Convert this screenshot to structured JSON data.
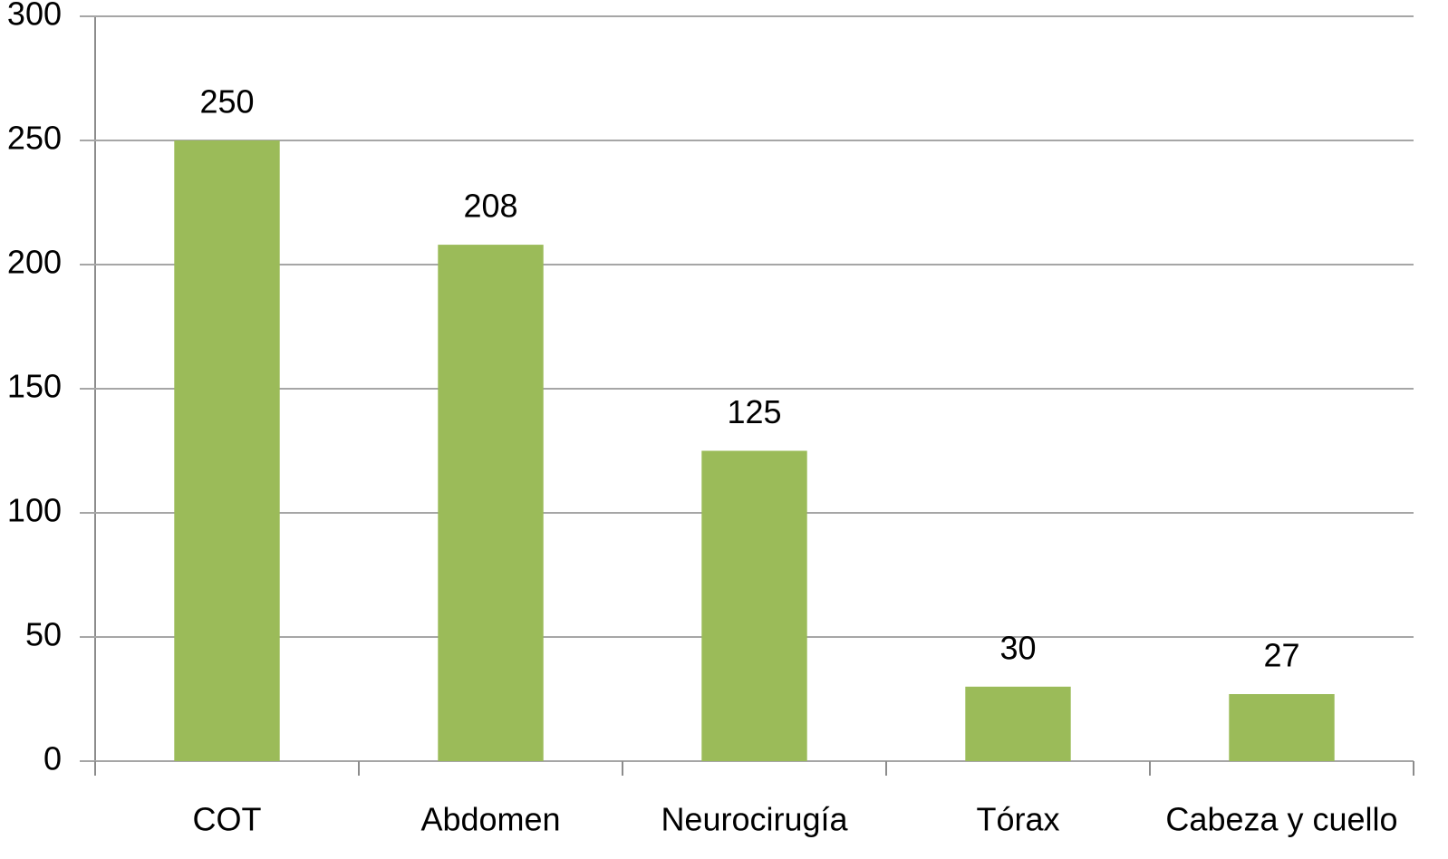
{
  "chart_data": {
    "type": "bar",
    "categories": [
      "COT",
      "Abdomen",
      "Neurocirugía",
      "Tórax",
      "Cabeza y cuello"
    ],
    "values": [
      250,
      208,
      125,
      30,
      27
    ],
    "color": "#9bbb59",
    "ylim": [
      0,
      300
    ],
    "yticks": [
      0,
      50,
      100,
      150,
      200,
      250,
      300
    ],
    "grid": true
  }
}
